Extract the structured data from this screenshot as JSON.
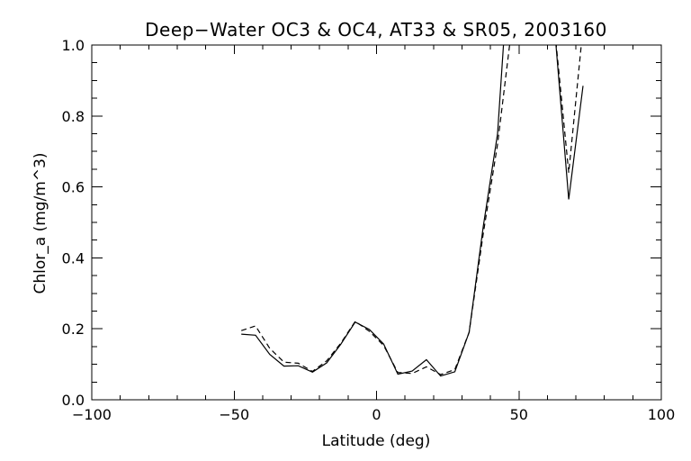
{
  "chart_data": {
    "type": "line",
    "title": "Deep−Water OC3 & OC4, AT33 & SR05, 2003160",
    "xlabel": "Latitude (deg)",
    "ylabel": "Chlor_a (mg/m^3)",
    "xlim": [
      -100,
      100
    ],
    "ylim": [
      0.0,
      1.0
    ],
    "x_ticks": [
      -100,
      -50,
      0,
      50,
      100
    ],
    "x_tick_labels": [
      "−100",
      "−50",
      "0",
      "50",
      "100"
    ],
    "x_minor_step": 10,
    "y_ticks": [
      0.0,
      0.2,
      0.4,
      0.6,
      0.8,
      1.0
    ],
    "y_tick_labels": [
      "0.0",
      "0.2",
      "0.4",
      "0.6",
      "0.8",
      "1.0"
    ],
    "y_minor_step": 0.05,
    "grid": false,
    "series": [
      {
        "style": "solid",
        "x": [
          -47.5,
          -42.5,
          -37.5,
          -32.5,
          -27.5,
          -22.5,
          -17.5,
          -12.5,
          -7.5,
          -2.5,
          2.5,
          7.5,
          12.5,
          17.5,
          22.5,
          27.5,
          32.5,
          37.5,
          42.5,
          45,
          62.5,
          67.5,
          72.5
        ],
        "y": [
          0.185,
          0.182,
          0.128,
          0.095,
          0.096,
          0.078,
          0.104,
          0.157,
          0.219,
          0.198,
          0.157,
          0.072,
          0.081,
          0.113,
          0.067,
          0.079,
          0.19,
          0.49,
          0.75,
          1.05,
          1.05,
          0.565,
          0.885
        ]
      },
      {
        "style": "dashed",
        "x": [
          -47.5,
          -42.5,
          -37.5,
          -32.5,
          -27.5,
          -22.5,
          -17.5,
          -12.5,
          -7.5,
          -2.5,
          2.5,
          7.5,
          12.5,
          17.5,
          22.5,
          27.5,
          32.5,
          37.5,
          42.5,
          47.5,
          62.5,
          67.5,
          72.5
        ],
        "y": [
          0.195,
          0.208,
          0.145,
          0.106,
          0.103,
          0.08,
          0.11,
          0.16,
          0.221,
          0.193,
          0.153,
          0.077,
          0.074,
          0.093,
          0.071,
          0.085,
          0.19,
          0.47,
          0.72,
          1.05,
          1.05,
          0.64,
          1.05
        ]
      }
    ]
  }
}
